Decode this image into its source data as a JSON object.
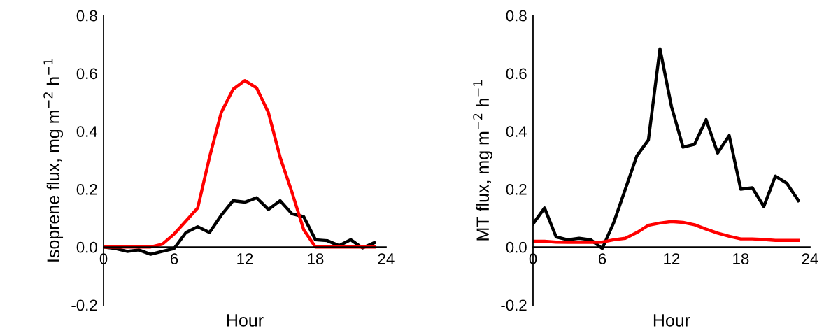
{
  "chart_data": [
    {
      "type": "line",
      "xlabel": "Hour",
      "ylabel": "Isoprene flux, mg m$^{−2}$ h$^{−1}$",
      "x": [
        0,
        1,
        2,
        3,
        4,
        5,
        6,
        7,
        8,
        9,
        10,
        11,
        12,
        13,
        14,
        15,
        16,
        17,
        18,
        19,
        20,
        21,
        22,
        23
      ],
      "series": [
        {
          "color": "#000000",
          "values": [
            0.0,
            -0.005,
            -0.015,
            -0.01,
            -0.025,
            -0.015,
            -0.005,
            0.05,
            0.07,
            0.05,
            0.11,
            0.16,
            0.155,
            0.17,
            0.13,
            0.16,
            0.115,
            0.105,
            0.025,
            0.022,
            0.005,
            0.025,
            -0.003,
            0.015
          ]
        },
        {
          "color": "#ff0000",
          "values": [
            0,
            0,
            0,
            0,
            0,
            0.01,
            0.045,
            0.09,
            0.135,
            0.31,
            0.465,
            0.545,
            0.575,
            0.55,
            0.465,
            0.31,
            0.19,
            0.06,
            0,
            0,
            0,
            0,
            0,
            0
          ]
        }
      ],
      "xlim": [
        0,
        24
      ],
      "xticks": [
        0,
        6,
        12,
        18,
        24
      ],
      "ylim": [
        -0.2,
        0.8
      ],
      "yticks": [
        {
          "value": -0.2,
          "label": "-0.2"
        },
        {
          "value": 0,
          "label": "0.0"
        },
        {
          "value": 0.2,
          "label": "0.2"
        },
        {
          "value": 0.4,
          "label": "0.4"
        },
        {
          "value": 0.6,
          "label": "0.6"
        },
        {
          "value": 0.8,
          "label": "0.8"
        }
      ],
      "grid": false,
      "legend": false,
      "marker": "none",
      "line_style": "solid"
    },
    {
      "type": "line",
      "xlabel": "Hour",
      "ylabel": "MT flux, mg m$^{−2}$ h$^{−1}$",
      "x": [
        0,
        1,
        2,
        3,
        4,
        5,
        6,
        7,
        8,
        9,
        10,
        11,
        12,
        13,
        14,
        15,
        16,
        17,
        18,
        19,
        20,
        21,
        22,
        23
      ],
      "series": [
        {
          "color": "#000000",
          "values": [
            0.08,
            0.135,
            0.035,
            0.025,
            0.03,
            0.025,
            -0.005,
            0.085,
            0.2,
            0.315,
            0.37,
            0.685,
            0.485,
            0.345,
            0.355,
            0.44,
            0.325,
            0.385,
            0.2,
            0.205,
            0.14,
            0.245,
            0.22,
            0.16
          ]
        },
        {
          "color": "#ff0000",
          "values": [
            0.02,
            0.02,
            0.017,
            0.016,
            0.016,
            0.016,
            0.017,
            0.025,
            0.03,
            0.05,
            0.075,
            0.083,
            0.088,
            0.085,
            0.077,
            0.062,
            0.048,
            0.037,
            0.028,
            0.028,
            0.026,
            0.023,
            0.023,
            0.023
          ]
        }
      ],
      "xlim": [
        0,
        24
      ],
      "xticks": [
        0,
        6,
        12,
        18,
        24
      ],
      "ylim": [
        -0.2,
        0.8
      ],
      "yticks": [
        {
          "value": -0.2,
          "label": "-0.2"
        },
        {
          "value": 0,
          "label": "0.0"
        },
        {
          "value": 0.2,
          "label": "0.2"
        },
        {
          "value": 0.4,
          "label": "0.4"
        },
        {
          "value": 0.6,
          "label": "0.6"
        },
        {
          "value": 0.8,
          "label": "0.8"
        }
      ],
      "grid": false,
      "legend": false,
      "marker": "none",
      "line_style": "solid"
    }
  ]
}
